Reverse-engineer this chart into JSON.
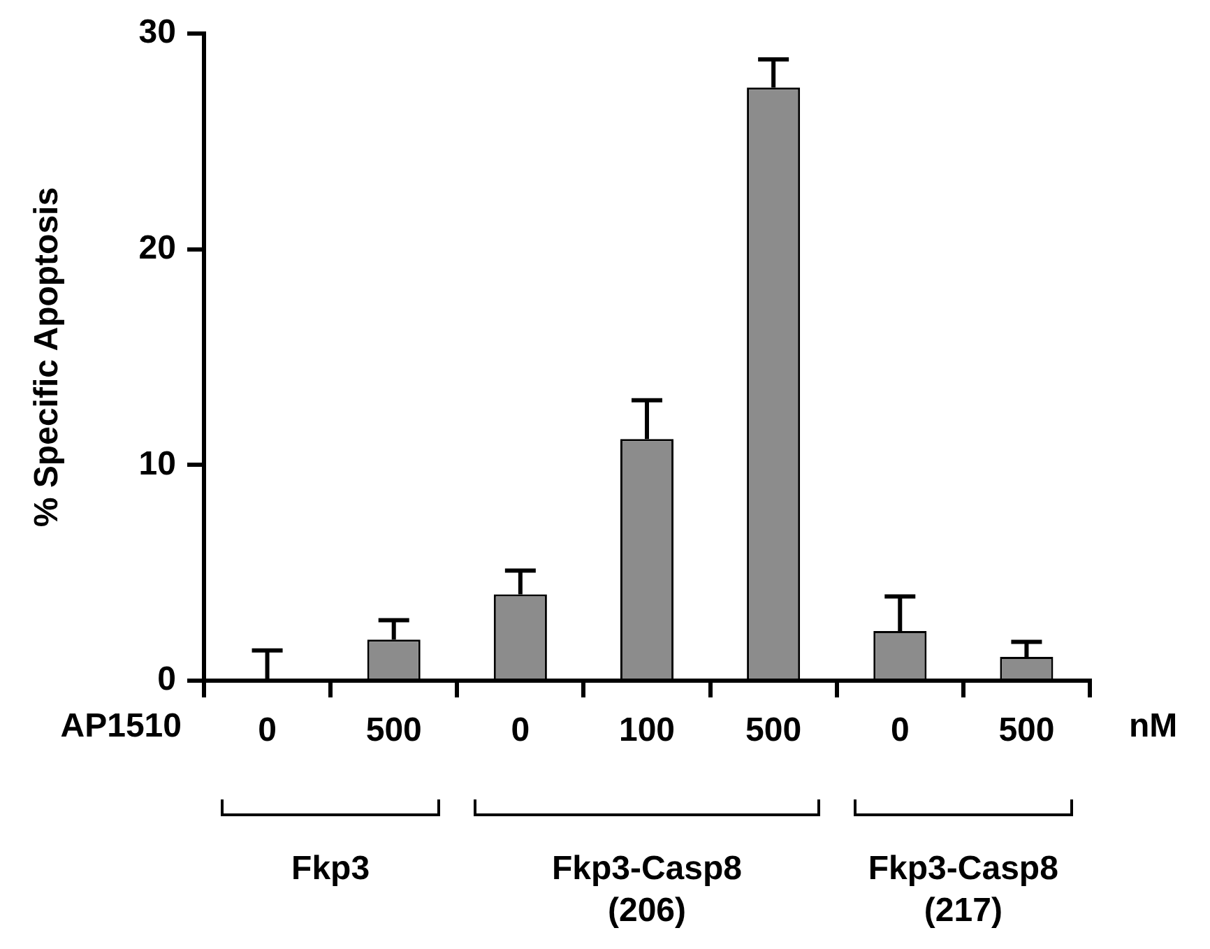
{
  "chart_data": {
    "type": "bar",
    "ylabel": "% Specific Apoptosis",
    "categories": [
      "0",
      "500",
      "0",
      "100",
      "500",
      "0",
      "500"
    ],
    "values": [
      0,
      1.9,
      4.0,
      11.2,
      27.5,
      2.3,
      1.1
    ],
    "errors": [
      [
        0,
        1.4
      ],
      [
        1.9,
        2.8
      ],
      [
        4.0,
        5.1
      ],
      [
        11.2,
        13.0
      ],
      [
        27.5,
        28.8
      ],
      [
        2.3,
        3.9
      ],
      [
        1.1,
        1.8
      ]
    ],
    "color": "#8c8c8c",
    "ylim": [
      0,
      30
    ],
    "yticks": [
      0,
      10,
      20,
      30
    ],
    "grid": false,
    "legend": false,
    "annotations": [
      "AP1510",
      "nM",
      "Fkp3",
      "Fkp3-Casp8\n(206)",
      "Fkp3-Casp8\n(217)"
    ]
  }
}
